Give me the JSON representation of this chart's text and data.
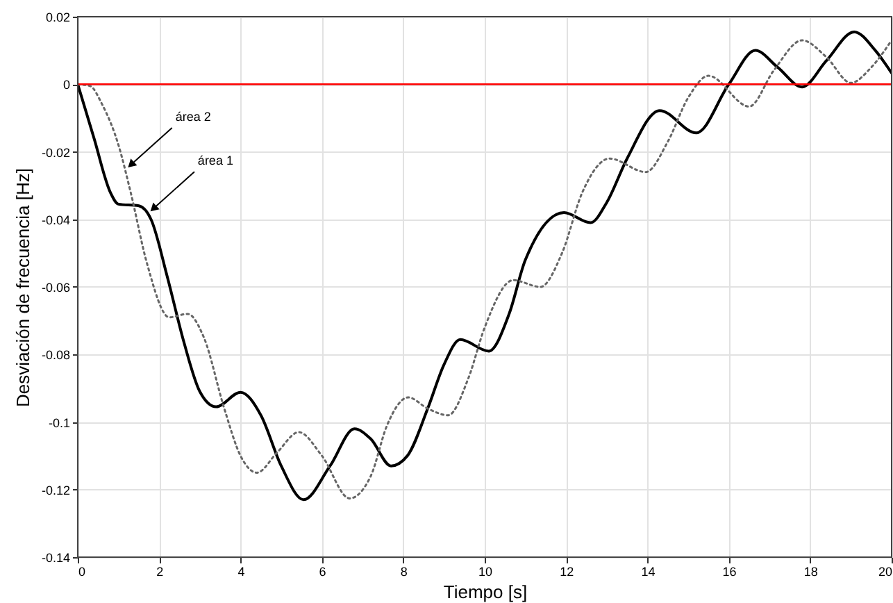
{
  "chart_data": {
    "type": "line",
    "xlabel": "Tiempo [s]",
    "ylabel": "Desviación de frecuencia [Hz]",
    "xlim": [
      0,
      20
    ],
    "xticks": [
      0,
      2,
      4,
      6,
      8,
      10,
      12,
      14,
      16,
      18,
      20
    ],
    "ylim": [
      -0.14,
      0.02
    ],
    "yticks": [
      -0.14,
      -0.12,
      -0.1,
      -0.08,
      -0.06,
      -0.04,
      -0.02,
      0,
      0.02
    ],
    "grid": true,
    "ref_lines": [
      {
        "axis": "y",
        "value": 0,
        "color": "#ff0000"
      }
    ],
    "annotations": [
      {
        "text": "área 2",
        "x": 1.2,
        "y": -0.025
      },
      {
        "text": "área 1",
        "x": 1.75,
        "y": -0.038
      }
    ],
    "series": [
      {
        "color": "#000000",
        "line_style": "solid",
        "x": [
          0,
          0.4,
          0.8,
          1.0,
          1.5,
          1.8,
          2.2,
          2.6,
          3.0,
          3.4,
          4.0,
          4.5,
          5.0,
          5.55,
          6.2,
          6.8,
          7.2,
          7.7,
          8.1,
          8.6,
          9.0,
          9.4,
          10.1,
          10.6,
          11.0,
          11.95,
          12.6,
          13.0,
          13.5,
          14.3,
          15.2,
          16.0,
          16.65,
          17.2,
          17.8,
          18.4,
          19.08,
          19.6,
          20
        ],
        "values": [
          0,
          -0.016,
          -0.032,
          -0.0355,
          -0.036,
          -0.04,
          -0.057,
          -0.076,
          -0.091,
          -0.0955,
          -0.0912,
          -0.098,
          -0.113,
          -0.123,
          -0.113,
          -0.102,
          -0.105,
          -0.113,
          -0.11,
          -0.096,
          -0.083,
          -0.0756,
          -0.079,
          -0.068,
          -0.052,
          -0.038,
          -0.041,
          -0.035,
          -0.022,
          -0.0078,
          -0.0144,
          0,
          0.01,
          0.005,
          -0.0008,
          0.007,
          0.0155,
          0.01,
          0.0033
        ]
      },
      {
        "color": "#666666",
        "line_style": "dotted",
        "x": [
          0,
          0.3,
          0.6,
          1.0,
          1.3,
          1.7,
          2.25,
          2.7,
          3.1,
          3.6,
          4.0,
          4.4,
          4.9,
          5.43,
          6.0,
          6.68,
          7.2,
          7.6,
          8.12,
          8.6,
          9.1,
          9.6,
          10.0,
          10.7,
          11.37,
          11.9,
          12.4,
          13.07,
          13.96,
          14.5,
          15.0,
          15.5,
          16.5,
          17.1,
          17.8,
          18.4,
          19.0,
          19.5,
          20
        ],
        "values": [
          0,
          -0.0005,
          -0.006,
          -0.018,
          -0.032,
          -0.053,
          -0.069,
          -0.068,
          -0.075,
          -0.096,
          -0.11,
          -0.115,
          -0.109,
          -0.103,
          -0.11,
          -0.1226,
          -0.116,
          -0.101,
          -0.0927,
          -0.096,
          -0.098,
          -0.087,
          -0.072,
          -0.058,
          -0.06,
          -0.05,
          -0.032,
          -0.022,
          -0.026,
          -0.017,
          -0.004,
          0.0025,
          -0.0066,
          0.004,
          0.013,
          0.008,
          0.0004,
          0.005,
          0.013
        ]
      }
    ]
  }
}
